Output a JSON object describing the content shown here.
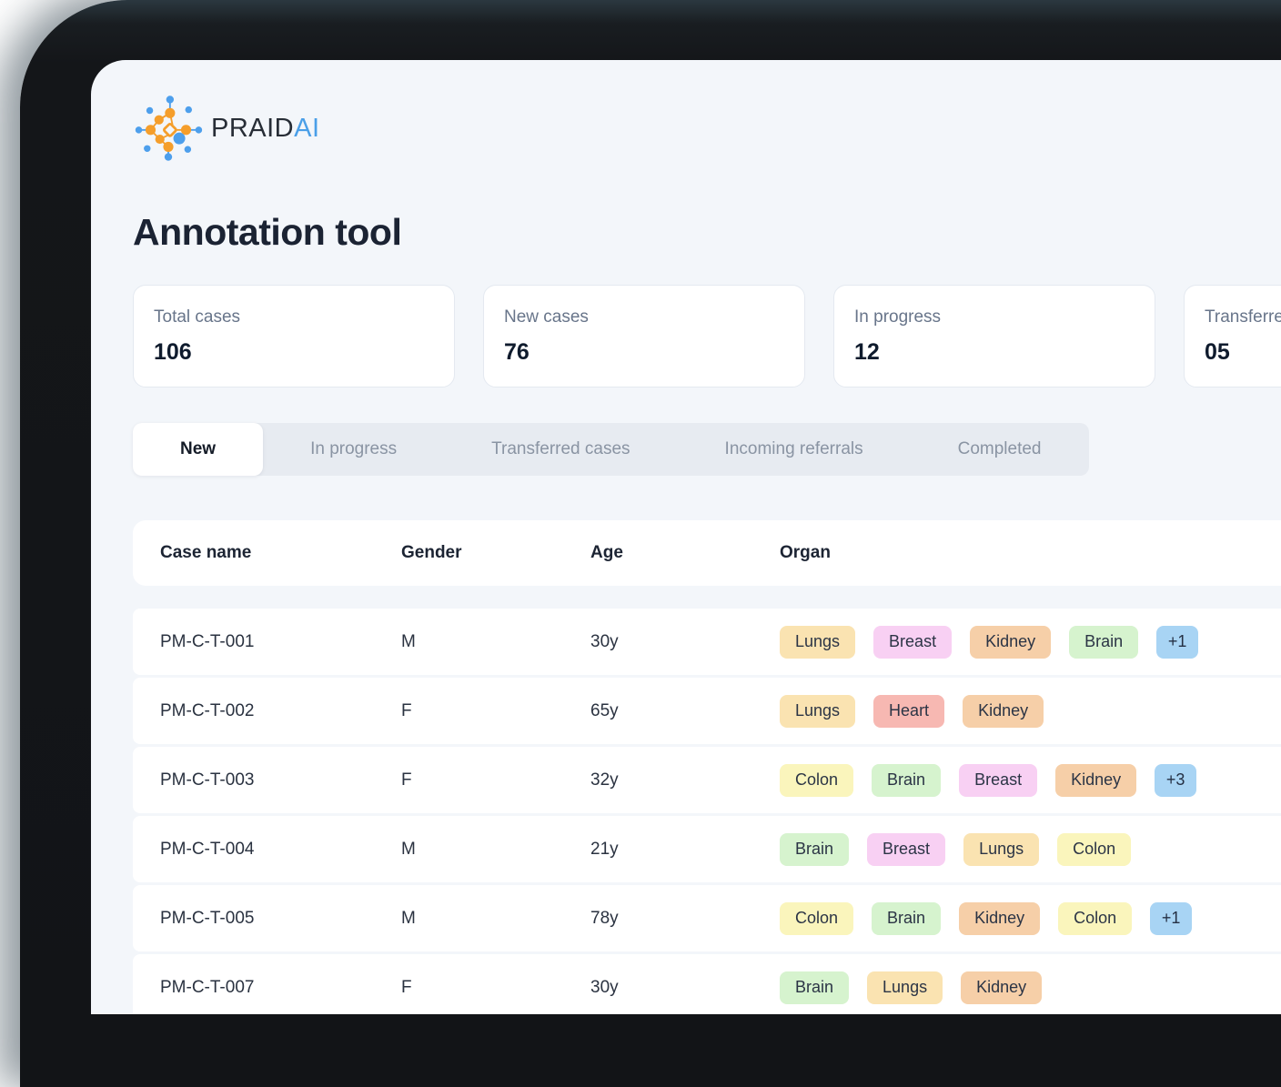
{
  "logo": {
    "brand": "PRAID",
    "suffix": "AI"
  },
  "header": {
    "title": "Annotation tool"
  },
  "stats": [
    {
      "label": "Total cases",
      "value": "106"
    },
    {
      "label": "New cases",
      "value": "76"
    },
    {
      "label": "In progress",
      "value": "12"
    },
    {
      "label": "Transferred",
      "value": "05"
    }
  ],
  "tabs": [
    {
      "label": "New",
      "active": true
    },
    {
      "label": "In progress",
      "active": false
    },
    {
      "label": "Transferred cases",
      "active": false
    },
    {
      "label": "Incoming referrals",
      "active": false
    },
    {
      "label": "Completed",
      "active": false
    }
  ],
  "table": {
    "columns": [
      "Case name",
      "Gender",
      "Age",
      "Organ"
    ],
    "rows": [
      {
        "case_name": "PM-C-T-001",
        "gender": "M",
        "age": "30y",
        "organs": [
          "Lungs",
          "Breast",
          "Kidney",
          "Brain"
        ],
        "more": "+1"
      },
      {
        "case_name": "PM-C-T-002",
        "gender": "F",
        "age": "65y",
        "organs": [
          "Lungs",
          "Heart",
          "Kidney"
        ],
        "more": null
      },
      {
        "case_name": "PM-C-T-003",
        "gender": "F",
        "age": "32y",
        "organs": [
          "Colon",
          "Brain",
          "Breast",
          "Kidney"
        ],
        "more": "+3"
      },
      {
        "case_name": "PM-C-T-004",
        "gender": "M",
        "age": "21y",
        "organs": [
          "Brain",
          "Breast",
          "Lungs",
          "Colon"
        ],
        "more": null
      },
      {
        "case_name": "PM-C-T-005",
        "gender": "M",
        "age": "78y",
        "organs": [
          "Colon",
          "Brain",
          "Kidney",
          "Colon"
        ],
        "more": "+1"
      },
      {
        "case_name": "PM-C-T-007",
        "gender": "F",
        "age": "30y",
        "organs": [
          "Brain",
          "Lungs",
          "Kidney"
        ],
        "more": null
      }
    ]
  },
  "colors": {
    "organ_tags": {
      "Lungs": "#fae3b1",
      "Breast": "#f8d0f3",
      "Kidney": "#f6cfa8",
      "Brain": "#d6f3ce",
      "Colon": "#faf5bc",
      "Heart": "#f7b8b2"
    },
    "more_badge": "#a8d4f4",
    "brand_blue": "#4a9fe8",
    "brand_orange": "#f59e2b"
  }
}
